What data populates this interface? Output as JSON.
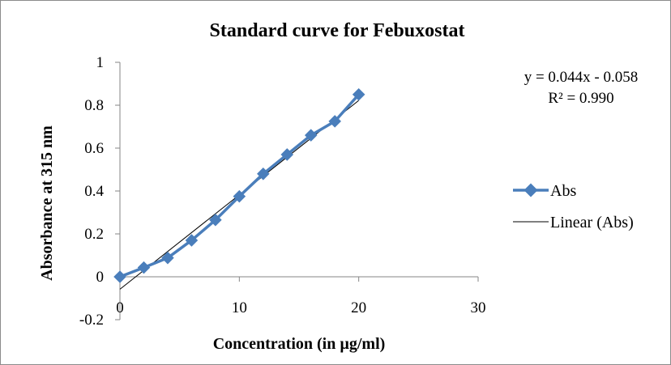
{
  "chart_data": {
    "type": "scatter",
    "title": "Standard curve for Febuxostat",
    "xlabel": "Concentration (in µg/ml)",
    "ylabel": "Absorbance at 315 nm",
    "xlim": [
      0,
      30
    ],
    "ylim": [
      -0.2,
      1
    ],
    "xticks": [
      0,
      10,
      20,
      30
    ],
    "yticks": [
      -0.2,
      0,
      0.2,
      0.4,
      0.6,
      0.8,
      1
    ],
    "xtick_labels": [
      "0",
      "10",
      "20",
      "30"
    ],
    "ytick_labels": [
      "-0.2",
      "0",
      "0.2",
      "0.4",
      "0.6",
      "0.8",
      "1"
    ],
    "grid": false,
    "legend_position": "right",
    "series": [
      {
        "name": "Abs",
        "color": "#4a7ebb",
        "marker": "diamond",
        "x": [
          0,
          2,
          4,
          6,
          8,
          10,
          12,
          14,
          16,
          18,
          20
        ],
        "y": [
          0.0,
          0.043,
          0.088,
          0.17,
          0.265,
          0.375,
          0.48,
          0.57,
          0.66,
          0.725,
          0.85
        ]
      }
    ],
    "trendline": {
      "name": "Linear (Abs)",
      "type": "linear",
      "slope": 0.044,
      "intercept": -0.058,
      "color": "#000000",
      "x_range": [
        0,
        20
      ],
      "equation": "y = 0.044x - 0.058",
      "r_squared": "R² = 0.990"
    },
    "legend": [
      "Abs",
      "Linear (Abs)"
    ]
  }
}
